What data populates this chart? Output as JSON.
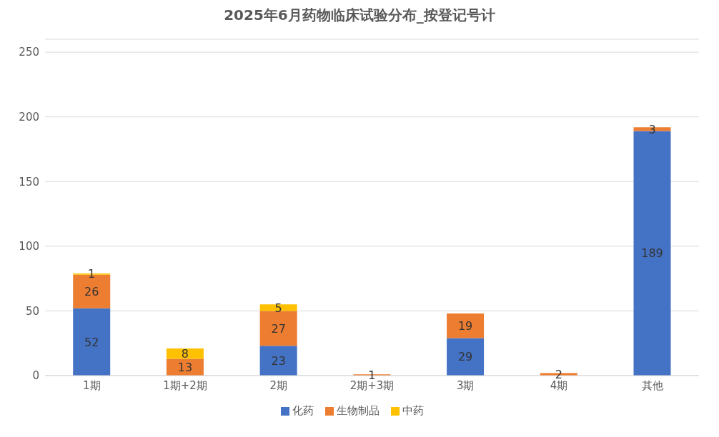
{
  "chart_data": {
    "type": "bar",
    "title": "2025年6月药物临床试验分布_按登记号计",
    "categories": [
      "1期",
      "1期+2期",
      "2期",
      "2期+3期",
      "3期",
      "4期",
      "其他"
    ],
    "series": [
      {
        "name": "化药",
        "color": "#4472c4",
        "values": [
          52,
          null,
          23,
          null,
          29,
          null,
          189
        ]
      },
      {
        "name": "生物制品",
        "color": "#ed7d31",
        "values": [
          26,
          13,
          27,
          1,
          19,
          2,
          3
        ]
      },
      {
        "name": "中药",
        "color": "#ffc000",
        "values": [
          1,
          8,
          5,
          null,
          null,
          null,
          null
        ]
      }
    ],
    "stacked": true,
    "ylim": [
      0,
      260
    ],
    "yticks": [
      0,
      50,
      100,
      150,
      200,
      250
    ],
    "grid": "y",
    "legend": "bottom",
    "data_labels": true
  }
}
